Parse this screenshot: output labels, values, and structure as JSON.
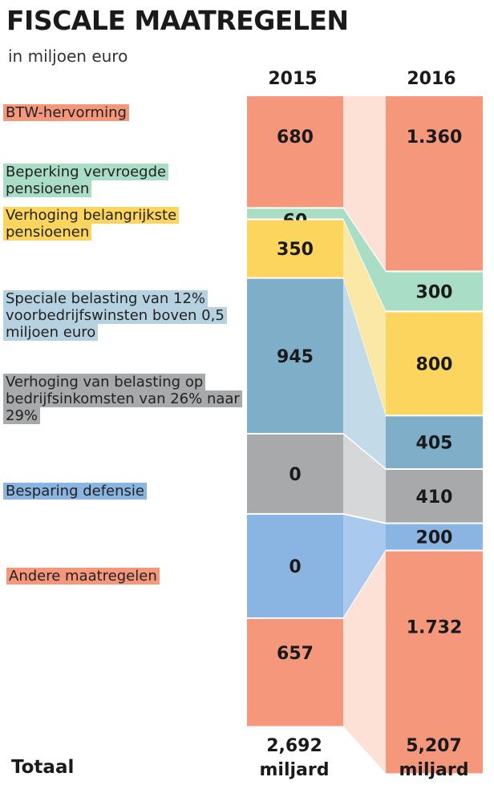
{
  "header": {
    "title": "FISCALE MAATREGELEN",
    "subtitle": "in miljoen euro"
  },
  "chart_data": {
    "type": "bar",
    "title": "FISCALE MAATREGELEN",
    "subtitle": "in miljoen euro",
    "categories": [
      "BTW-hervorming",
      "Beperking vervroegde pensioenen",
      "Verhoging belangrijkste pensioenen",
      "Speciale belasting van 12% voorbedrijfswinsten boven 0,5 miljoen euro",
      "Verhoging van belasting op bedrijfsinkomsten van 26% naar 29%",
      "Besparing defensie",
      "Andere maatregelen"
    ],
    "series": [
      {
        "name": "2015",
        "values": [
          680,
          60,
          350,
          945,
          0,
          0,
          657
        ],
        "labels": [
          "680",
          "60",
          "350",
          "945",
          "0",
          "0",
          "657"
        ]
      },
      {
        "name": "2016",
        "values": [
          1360,
          300,
          800,
          405,
          410,
          200,
          1732
        ],
        "labels": [
          "1.360",
          "300",
          "800",
          "405",
          "410",
          "200",
          "1.732"
        ]
      }
    ],
    "colors": [
      "#f4977b",
      "#a9ddc6",
      "#fcd55f",
      "#7eaec8",
      "#a7a9ab",
      "#8ab5e2",
      "#f4977b"
    ],
    "flow_colors": [
      "#fde0d6",
      "#a9ddc6",
      "#fbe7a6",
      "#c3dbe8",
      "#d6d7d8",
      "#a9c9ee",
      "#fde0d6"
    ],
    "label_colors": [
      "#f4977b",
      "#a9ddc6",
      "#fcd55f",
      "#b6d2e1",
      "#a7a9ab",
      "#8ab5e2",
      "#f4977b"
    ],
    "totals": [
      {
        "year": "2015",
        "value": "2,692",
        "unit": "miljard"
      },
      {
        "year": "2016",
        "value": "5,207",
        "unit": "miljard"
      }
    ],
    "total_label": "Totaal",
    "legend": "left",
    "grid": false
  }
}
